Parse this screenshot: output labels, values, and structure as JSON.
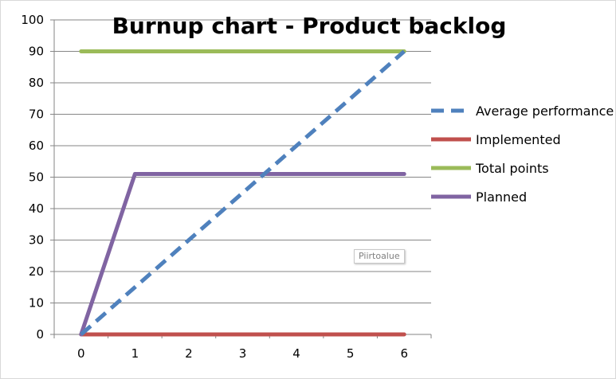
{
  "chart_data": {
    "type": "line",
    "title": "Burnup chart - Product backlog",
    "xlabel": "",
    "ylabel": "",
    "x": [
      0,
      1,
      2,
      3,
      4,
      5,
      6
    ],
    "xlim": [
      -0.5,
      6.5
    ],
    "ylim": [
      0,
      100
    ],
    "yticks": [
      0,
      10,
      20,
      30,
      40,
      50,
      60,
      70,
      80,
      90,
      100
    ],
    "grid": true,
    "legend_position": "right",
    "series": [
      {
        "name": "Average performance",
        "color": "#4f81bd",
        "dashed": true,
        "x": [
          0,
          6
        ],
        "values": [
          0,
          90
        ]
      },
      {
        "name": "Implemented",
        "color": "#c0504d",
        "dashed": false,
        "x": [
          0,
          6
        ],
        "values": [
          0,
          0
        ]
      },
      {
        "name": "Total points",
        "color": "#9bbb59",
        "dashed": false,
        "x": [
          0,
          6
        ],
        "values": [
          90,
          90
        ]
      },
      {
        "name": "Planned",
        "color": "#8064a2",
        "dashed": false,
        "x": [
          0,
          1,
          6
        ],
        "values": [
          0,
          51,
          51
        ]
      }
    ]
  },
  "tooltip": {
    "label": "Piirtoalue"
  }
}
